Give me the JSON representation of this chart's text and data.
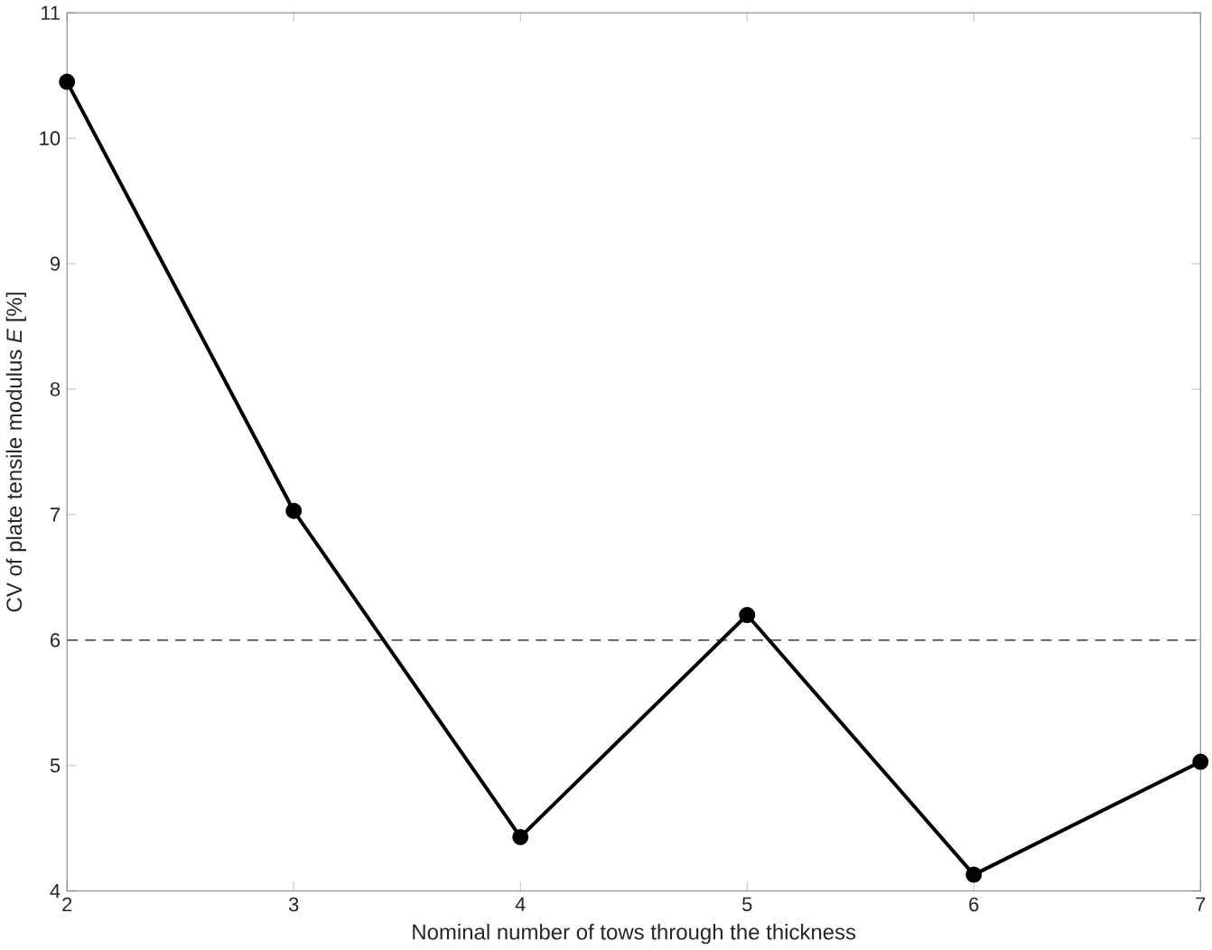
{
  "chart_data": {
    "type": "line",
    "xlabel": "Nominal number of tows through the thickness",
    "ylabel": "CV of plate tensile modulus *E* [%]",
    "x": [
      2,
      3,
      4,
      5,
      6,
      7
    ],
    "series": [
      {
        "color": "#000000",
        "values": [
          10.45,
          7.03,
          4.43,
          6.2,
          4.13,
          5.03
        ]
      }
    ],
    "xlim": [
      2,
      7
    ],
    "ylim": [
      4,
      11
    ],
    "xticks": [
      2,
      3,
      4,
      5,
      6,
      7
    ],
    "yticks": [
      4,
      5,
      6,
      7,
      8,
      9,
      10,
      11
    ],
    "ref_lines": [
      {
        "axis": "y",
        "value": 6,
        "color": "#555555",
        "line_style": "dashed"
      }
    ],
    "marker": "circle",
    "line_style": "solid",
    "grid": false
  }
}
